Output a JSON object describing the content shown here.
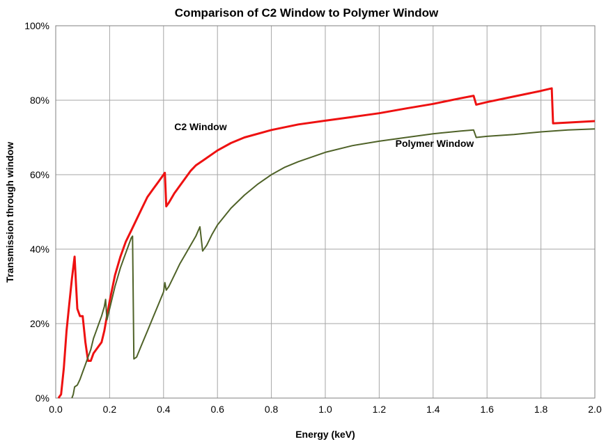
{
  "chart_data": {
    "type": "line",
    "title": "Comparison of C2 Window to Polymer Window",
    "xlabel": "Energy (keV)",
    "ylabel": "Transmission through window",
    "xlim": [
      0,
      2.0
    ],
    "ylim": [
      0,
      100
    ],
    "x_ticks": [
      "0.0",
      "0.2",
      "0.4",
      "0.6",
      "0.8",
      "1.0",
      "1.2",
      "1.4",
      "1.6",
      "1.8",
      "2.0"
    ],
    "y_ticks": [
      "0%",
      "20%",
      "40%",
      "60%",
      "80%",
      "100%"
    ],
    "grid": true,
    "series": [
      {
        "name": "C2 Window",
        "color": "#ee1111",
        "points": [
          [
            0.01,
            0
          ],
          [
            0.02,
            1
          ],
          [
            0.03,
            8
          ],
          [
            0.04,
            18
          ],
          [
            0.05,
            25
          ],
          [
            0.06,
            32
          ],
          [
            0.07,
            38
          ],
          [
            0.075,
            31
          ],
          [
            0.08,
            24
          ],
          [
            0.09,
            22
          ],
          [
            0.1,
            22
          ],
          [
            0.11,
            15
          ],
          [
            0.12,
            10
          ],
          [
            0.13,
            10
          ],
          [
            0.14,
            12
          ],
          [
            0.15,
            13
          ],
          [
            0.16,
            14
          ],
          [
            0.17,
            15
          ],
          [
            0.18,
            18
          ],
          [
            0.19,
            22
          ],
          [
            0.2,
            26
          ],
          [
            0.22,
            33
          ],
          [
            0.24,
            38
          ],
          [
            0.26,
            42
          ],
          [
            0.28,
            45
          ],
          [
            0.3,
            48
          ],
          [
            0.32,
            51
          ],
          [
            0.34,
            54
          ],
          [
            0.36,
            56
          ],
          [
            0.38,
            58
          ],
          [
            0.4,
            60
          ],
          [
            0.405,
            60.5
          ],
          [
            0.41,
            51.5
          ],
          [
            0.42,
            52.5
          ],
          [
            0.44,
            55
          ],
          [
            0.46,
            57
          ],
          [
            0.48,
            59
          ],
          [
            0.5,
            61
          ],
          [
            0.52,
            62.5
          ],
          [
            0.55,
            64
          ],
          [
            0.6,
            66.5
          ],
          [
            0.65,
            68.5
          ],
          [
            0.7,
            70
          ],
          [
            0.8,
            72
          ],
          [
            0.9,
            73.5
          ],
          [
            1.0,
            74.5
          ],
          [
            1.1,
            75.5
          ],
          [
            1.2,
            76.5
          ],
          [
            1.3,
            77.8
          ],
          [
            1.4,
            79
          ],
          [
            1.5,
            80.5
          ],
          [
            1.55,
            81.2
          ],
          [
            1.56,
            78.8
          ],
          [
            1.6,
            79.5
          ],
          [
            1.7,
            81
          ],
          [
            1.8,
            82.5
          ],
          [
            1.84,
            83.2
          ],
          [
            1.845,
            73.8
          ],
          [
            1.9,
            74
          ],
          [
            2.0,
            74.4
          ]
        ]
      },
      {
        "name": "Polymer Window",
        "color": "#4f6228",
        "points": [
          [
            0.06,
            0
          ],
          [
            0.065,
            1
          ],
          [
            0.07,
            3
          ],
          [
            0.08,
            3.5
          ],
          [
            0.09,
            5
          ],
          [
            0.1,
            7
          ],
          [
            0.11,
            9
          ],
          [
            0.12,
            11
          ],
          [
            0.13,
            13
          ],
          [
            0.14,
            16
          ],
          [
            0.15,
            18
          ],
          [
            0.16,
            20
          ],
          [
            0.17,
            22
          ],
          [
            0.18,
            24.5
          ],
          [
            0.185,
            26.5
          ],
          [
            0.19,
            21
          ],
          [
            0.2,
            24
          ],
          [
            0.22,
            30
          ],
          [
            0.24,
            35
          ],
          [
            0.26,
            39
          ],
          [
            0.28,
            43
          ],
          [
            0.285,
            43.5
          ],
          [
            0.29,
            10.5
          ],
          [
            0.3,
            11
          ],
          [
            0.32,
            14.5
          ],
          [
            0.34,
            18
          ],
          [
            0.36,
            21.5
          ],
          [
            0.38,
            25
          ],
          [
            0.4,
            28.5
          ],
          [
            0.405,
            31
          ],
          [
            0.41,
            29
          ],
          [
            0.42,
            30
          ],
          [
            0.44,
            33
          ],
          [
            0.46,
            36
          ],
          [
            0.48,
            38.5
          ],
          [
            0.5,
            41
          ],
          [
            0.52,
            43.5
          ],
          [
            0.535,
            46
          ],
          [
            0.545,
            39.5
          ],
          [
            0.56,
            41
          ],
          [
            0.58,
            44
          ],
          [
            0.6,
            46.5
          ],
          [
            0.65,
            51
          ],
          [
            0.7,
            54.5
          ],
          [
            0.75,
            57.5
          ],
          [
            0.8,
            60
          ],
          [
            0.85,
            62
          ],
          [
            0.9,
            63.5
          ],
          [
            1.0,
            66
          ],
          [
            1.1,
            67.8
          ],
          [
            1.2,
            69
          ],
          [
            1.3,
            70
          ],
          [
            1.4,
            71
          ],
          [
            1.5,
            71.7
          ],
          [
            1.55,
            72
          ],
          [
            1.56,
            70
          ],
          [
            1.6,
            70.3
          ],
          [
            1.7,
            70.8
          ],
          [
            1.8,
            71.5
          ],
          [
            1.9,
            72
          ],
          [
            2.0,
            72.3
          ]
        ]
      }
    ],
    "annotations": [
      {
        "text": "C2 Window",
        "x": 0.44,
        "y": 72
      },
      {
        "text": "Polymer Window",
        "x": 1.26,
        "y": 67.5
      }
    ]
  }
}
